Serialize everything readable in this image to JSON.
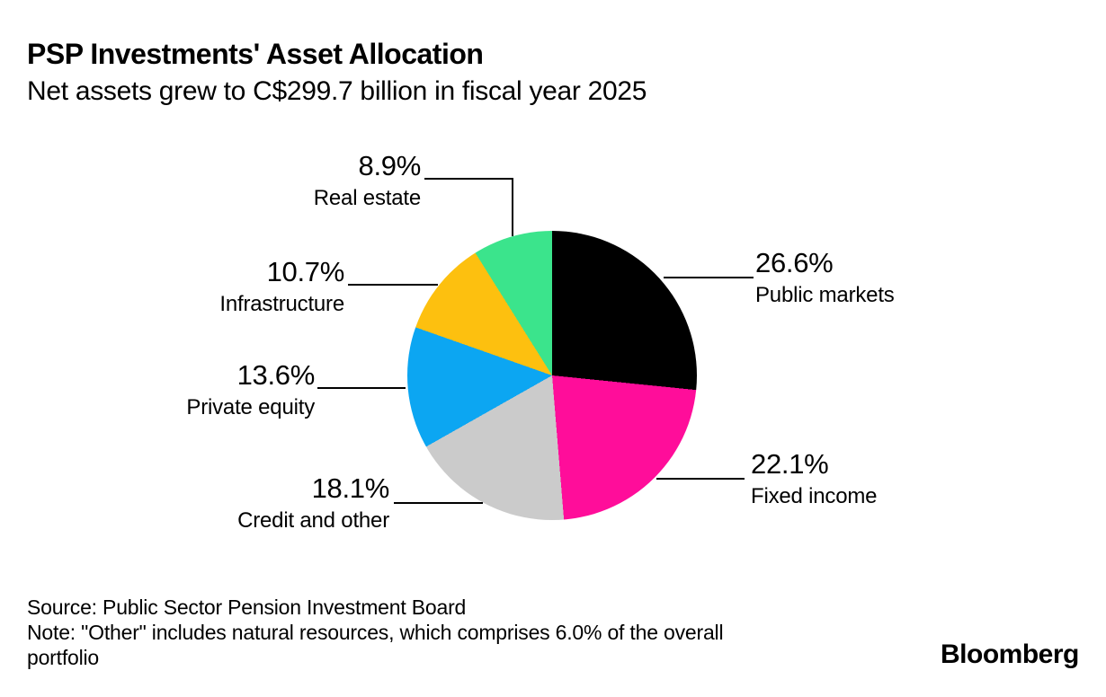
{
  "header": {
    "title": "PSP Investments' Asset Allocation",
    "subtitle": "Net assets grew to C$299.7 billion in fiscal year 2025"
  },
  "chart_data": {
    "type": "pie",
    "title": "PSP Investments' Asset Allocation",
    "subtitle": "Net assets grew to C$299.7 billion in fiscal year 2025",
    "start_angle_deg": 0,
    "direction": "clockwise",
    "units": "percent of portfolio",
    "segments": [
      {
        "label": "Public markets",
        "value_pct": 26.6,
        "color": "#000000"
      },
      {
        "label": "Fixed income",
        "value_pct": 22.1,
        "color": "#ff0d9a"
      },
      {
        "label": "Credit and other",
        "value_pct": 18.1,
        "color": "#cbcbcb"
      },
      {
        "label": "Private equity",
        "value_pct": 13.6,
        "color": "#0ca6f2"
      },
      {
        "label": "Infrastructure",
        "value_pct": 10.7,
        "color": "#fdc00f"
      },
      {
        "label": "Real estate",
        "value_pct": 8.9,
        "color": "#3be48c"
      }
    ]
  },
  "callouts": {
    "public_markets": {
      "value": "26.6%",
      "label": "Public markets"
    },
    "fixed_income": {
      "value": "22.1%",
      "label": "Fixed income"
    },
    "credit": {
      "value": "18.1%",
      "label": "Credit and other"
    },
    "private_equity": {
      "value": "13.6%",
      "label": "Private equity"
    },
    "infrastructure": {
      "value": "10.7%",
      "label": "Infrastructure"
    },
    "real_estate": {
      "value": "8.9%",
      "label": "Real estate"
    }
  },
  "footer": {
    "source": "Source: Public Sector Pension Investment Board",
    "note": "Note: \"Other\" includes natural resources, which comprises 6.0% of the overall portfolio",
    "logo": "Bloomberg"
  }
}
